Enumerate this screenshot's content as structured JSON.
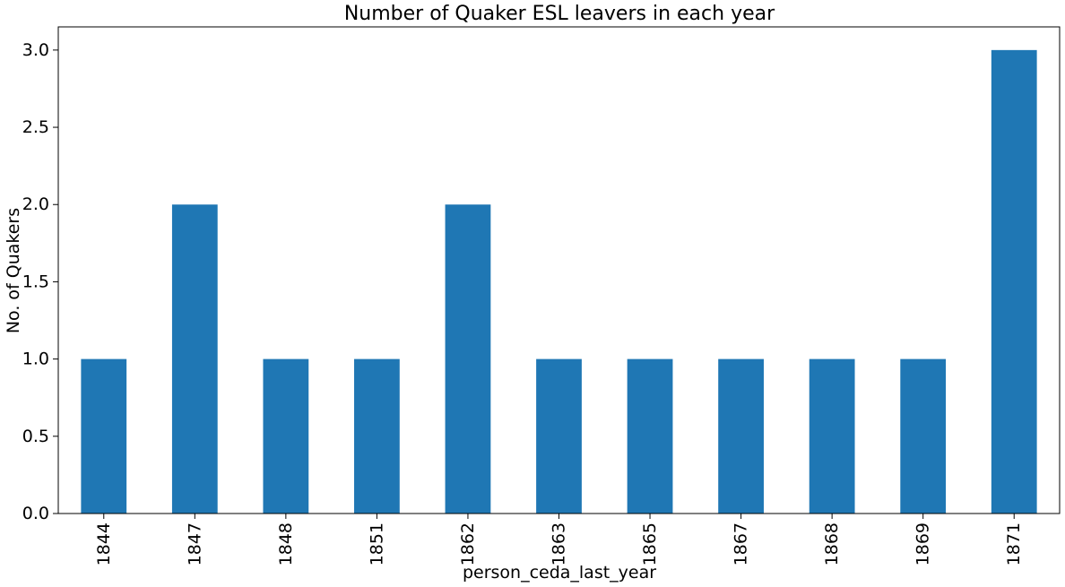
{
  "chart_data": {
    "type": "bar",
    "title": "Number of Quaker ESL leavers in each year",
    "xlabel": "person_ceda_last_year",
    "ylabel": "No. of Quakers",
    "categories": [
      "1844",
      "1847",
      "1848",
      "1851",
      "1862",
      "1863",
      "1865",
      "1867",
      "1868",
      "1869",
      "1871"
    ],
    "values": [
      1,
      2,
      1,
      1,
      2,
      1,
      1,
      1,
      1,
      1,
      3
    ],
    "ylim": [
      0,
      3.15
    ],
    "yticks": [
      0.0,
      0.5,
      1.0,
      1.5,
      2.0,
      2.5,
      3.0
    ],
    "ytick_labels": [
      "0.0",
      "0.5",
      "1.0",
      "1.5",
      "2.0",
      "2.5",
      "3.0"
    ],
    "grid": false,
    "legend": "none",
    "bar_color": "#1f77b4"
  }
}
